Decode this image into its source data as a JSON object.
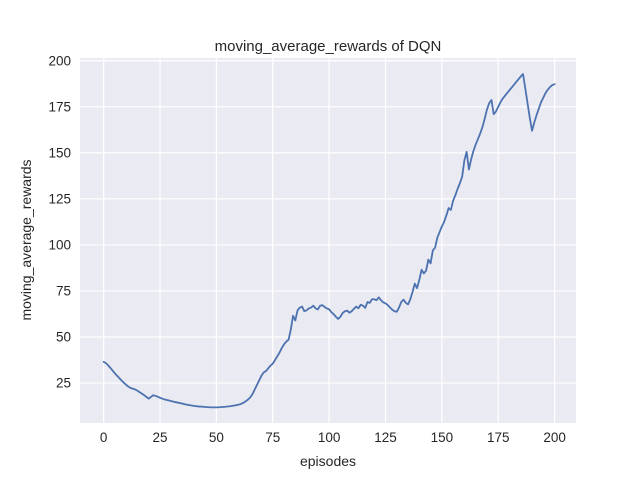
{
  "chart_data": {
    "type": "line",
    "title": "moving_average_rewards of DQN",
    "xlabel": "episodes",
    "ylabel": "moving_average_rewards",
    "x_ticks": [
      0,
      25,
      50,
      75,
      100,
      125,
      150,
      175,
      200
    ],
    "y_ticks": [
      25,
      50,
      75,
      100,
      125,
      150,
      175,
      200
    ],
    "xlim": [
      -10.5,
      209.5
    ],
    "ylim": [
      3.3,
      201.5
    ],
    "grid": true,
    "legend": false,
    "colors": {
      "line": "#4c72b0",
      "plot_background": "#eaeaf2",
      "gridline": "#ffffff",
      "figure_background": "#ffffff",
      "text": "#262626"
    },
    "x": [
      0,
      1,
      2,
      3,
      4,
      5,
      6,
      7,
      8,
      9,
      10,
      11,
      12,
      13,
      14,
      15,
      16,
      17,
      18,
      19,
      20,
      21,
      22,
      23,
      24,
      25,
      26,
      27,
      28,
      29,
      30,
      32,
      34,
      36,
      38,
      40,
      42,
      44,
      46,
      48,
      50,
      52,
      54,
      56,
      58,
      60,
      61,
      62,
      63,
      64,
      65,
      66,
      67,
      68,
      69,
      70,
      71,
      72,
      73,
      74,
      75,
      76,
      77,
      78,
      79,
      80,
      81,
      82,
      83,
      84,
      85,
      86,
      87,
      88,
      89,
      90,
      91,
      92,
      93,
      94,
      95,
      96,
      97,
      98,
      99,
      100,
      101,
      102,
      103,
      104,
      105,
      106,
      107,
      108,
      109,
      110,
      111,
      112,
      113,
      114,
      115,
      116,
      117,
      118,
      119,
      120,
      121,
      122,
      123,
      124,
      125,
      126,
      127,
      128,
      129,
      130,
      131,
      132,
      133,
      134,
      135,
      136,
      137,
      138,
      139,
      140,
      141,
      142,
      143,
      144,
      145,
      146,
      147,
      148,
      149,
      150,
      151,
      152,
      153,
      154,
      155,
      156,
      157,
      158,
      159,
      160,
      161,
      162,
      163,
      164,
      165,
      166,
      167,
      168,
      169,
      170,
      171,
      172,
      173,
      174,
      175,
      176,
      177,
      178,
      179,
      180,
      181,
      182,
      183,
      184,
      185,
      186,
      187,
      188,
      189,
      190,
      191,
      192,
      193,
      194,
      195,
      196,
      197,
      198,
      199,
      200
    ],
    "y": [
      36.5,
      35.8,
      34.6,
      33.2,
      31.7,
      30.2,
      28.9,
      27.6,
      26.3,
      25.1,
      24.0,
      23.0,
      22.3,
      21.9,
      21.5,
      20.8,
      20.0,
      19.2,
      18.4,
      17.4,
      16.5,
      17.5,
      18.4,
      18.0,
      17.6,
      17.0,
      16.5,
      16.1,
      15.8,
      15.5,
      15.2,
      14.6,
      14.1,
      13.5,
      13.0,
      12.6,
      12.3,
      12.1,
      11.9,
      11.8,
      11.8,
      11.9,
      12.1,
      12.4,
      12.8,
      13.3,
      13.7,
      14.3,
      15.1,
      16.0,
      17.2,
      19.0,
      21.5,
      24.0,
      26.5,
      29.0,
      30.8,
      31.5,
      33.0,
      34.5,
      35.5,
      37.5,
      39.5,
      41.5,
      44.0,
      46.0,
      47.5,
      48.5,
      54.0,
      61.5,
      59.0,
      64.5,
      66.0,
      66.5,
      64.0,
      64.5,
      65.5,
      66.0,
      67.0,
      65.5,
      65.0,
      67.0,
      67.3,
      66.3,
      65.5,
      65.0,
      63.5,
      62.4,
      61.0,
      59.8,
      61.0,
      63.0,
      64.0,
      64.3,
      63.2,
      64.0,
      65.3,
      66.5,
      65.6,
      67.5,
      67.0,
      65.8,
      69.0,
      68.5,
      70.5,
      70.5,
      70.0,
      71.5,
      70.0,
      68.8,
      68.3,
      67.3,
      66.0,
      64.8,
      64.0,
      63.7,
      66.0,
      69.0,
      70.3,
      68.5,
      67.7,
      70.5,
      74.5,
      79.0,
      76.5,
      81.0,
      86.5,
      84.5,
      86.0,
      92.0,
      90.0,
      97.0,
      98.5,
      104.0,
      107.0,
      110.0,
      112.5,
      116.0,
      120.0,
      119.0,
      124.0,
      127.0,
      130.5,
      133.5,
      137.0,
      146.0,
      150.5,
      141.0,
      146.5,
      151.0,
      154.5,
      157.5,
      160.5,
      164.0,
      168.5,
      173.5,
      177.0,
      178.7,
      171.0,
      172.5,
      175.0,
      177.5,
      179.5,
      181.0,
      182.5,
      184.0,
      185.5,
      187.0,
      188.5,
      190.0,
      191.5,
      192.8,
      185.0,
      177.0,
      169.0,
      162.0,
      166.5,
      170.5,
      174.0,
      177.5,
      180.0,
      182.5,
      184.3,
      185.8,
      186.8,
      187.3
    ]
  }
}
